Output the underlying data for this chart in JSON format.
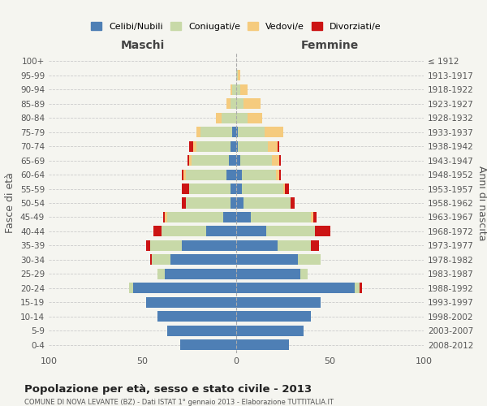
{
  "age_groups": [
    "0-4",
    "5-9",
    "10-14",
    "15-19",
    "20-24",
    "25-29",
    "30-34",
    "35-39",
    "40-44",
    "45-49",
    "50-54",
    "55-59",
    "60-64",
    "65-69",
    "70-74",
    "75-79",
    "80-84",
    "85-89",
    "90-94",
    "95-99",
    "100+"
  ],
  "birth_years": [
    "2008-2012",
    "2003-2007",
    "1998-2002",
    "1993-1997",
    "1988-1992",
    "1983-1987",
    "1978-1982",
    "1973-1977",
    "1968-1972",
    "1963-1967",
    "1958-1962",
    "1953-1957",
    "1948-1952",
    "1943-1947",
    "1938-1942",
    "1933-1937",
    "1928-1932",
    "1923-1927",
    "1918-1922",
    "1913-1917",
    "≤ 1912"
  ],
  "male_celibi": [
    30,
    37,
    42,
    48,
    55,
    38,
    35,
    29,
    16,
    7,
    3,
    3,
    5,
    4,
    3,
    2,
    0,
    0,
    0,
    0,
    0
  ],
  "male_coniugati": [
    0,
    0,
    0,
    0,
    2,
    4,
    10,
    17,
    24,
    30,
    24,
    22,
    22,
    20,
    18,
    17,
    8,
    3,
    2,
    0,
    0
  ],
  "male_vedovi": [
    0,
    0,
    0,
    0,
    0,
    0,
    0,
    0,
    0,
    1,
    0,
    0,
    1,
    1,
    2,
    2,
    3,
    2,
    1,
    0,
    0
  ],
  "male_divorziati": [
    0,
    0,
    0,
    0,
    0,
    0,
    1,
    2,
    4,
    1,
    2,
    4,
    1,
    1,
    2,
    0,
    0,
    0,
    0,
    0,
    0
  ],
  "female_celibi": [
    28,
    36,
    40,
    45,
    63,
    34,
    33,
    22,
    16,
    8,
    4,
    3,
    3,
    2,
    1,
    1,
    0,
    0,
    0,
    0,
    0
  ],
  "female_coniugati": [
    0,
    0,
    0,
    0,
    3,
    4,
    12,
    18,
    26,
    32,
    25,
    22,
    18,
    17,
    16,
    14,
    6,
    4,
    2,
    1,
    0
  ],
  "female_vedovi": [
    0,
    0,
    0,
    0,
    0,
    0,
    0,
    0,
    0,
    1,
    0,
    1,
    2,
    4,
    5,
    10,
    8,
    9,
    4,
    1,
    0
  ],
  "female_divorziati": [
    0,
    0,
    0,
    0,
    1,
    0,
    0,
    4,
    8,
    2,
    2,
    2,
    1,
    1,
    1,
    0,
    0,
    0,
    0,
    0,
    0
  ],
  "color_celibi": "#4e7fb5",
  "color_coniugati": "#c8d9a8",
  "color_vedovi": "#f5cb7e",
  "color_divorziati": "#cc1414",
  "xlim": 100,
  "title": "Popolazione per età, sesso e stato civile - 2013",
  "subtitle": "COMUNE DI NOVA LEVANTE (BZ) - Dati ISTAT 1° gennaio 2013 - Elaborazione TUTTITALIA.IT",
  "ylabel": "Fasce di età",
  "ylabel_right": "Anni di nascita",
  "xlabel_left": "Maschi",
  "xlabel_right": "Femmine",
  "bg_color": "#f5f5f0",
  "grid_color": "#cccccc"
}
